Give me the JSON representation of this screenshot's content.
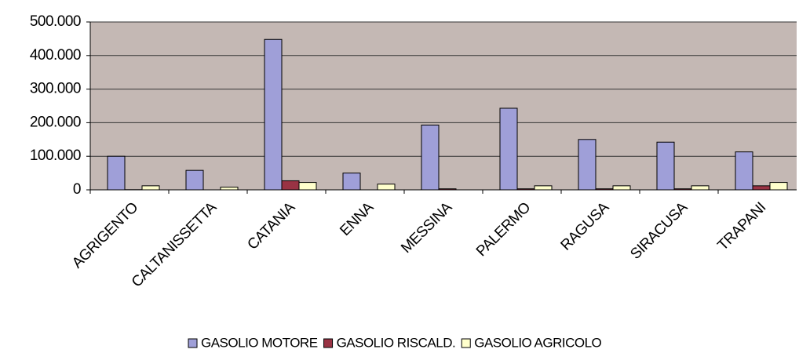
{
  "chart_data": {
    "type": "bar",
    "categories": [
      "AGRIGENTO",
      "CALTANISSETTA",
      "CATANIA",
      "ENNA",
      "MESSINA",
      "PALERMO",
      "RAGUSA",
      "SIRACUSA",
      "TRAPANI"
    ],
    "series": [
      {
        "name": "GASOLIO MOTORE",
        "color": "#9f9fd8",
        "values": [
          100000,
          58000,
          448000,
          50000,
          193000,
          243000,
          150000,
          142000,
          113000
        ]
      },
      {
        "name": "GASOLIO RISCALD.",
        "color": "#993344",
        "values": [
          500,
          0,
          27000,
          0,
          3000,
          3000,
          3000,
          3000,
          12000
        ]
      },
      {
        "name": "GASOLIO AGRICOLO",
        "color": "#ffffcc",
        "values": [
          12000,
          8000,
          22000,
          17000,
          0,
          12000,
          12000,
          12000,
          22000
        ]
      }
    ],
    "ylim": [
      0,
      500000
    ],
    "yticks": [
      0,
      {
        "value": 100000,
        "label": "100.000"
      },
      {
        "value": 200000,
        "label": "200.000"
      },
      {
        "value": 300000,
        "label": "300.000"
      },
      {
        "value": 400000,
        "label": "400.000"
      },
      {
        "value": 500000,
        "label": "500.000"
      }
    ],
    "grid": true,
    "legend": "bottom"
  }
}
